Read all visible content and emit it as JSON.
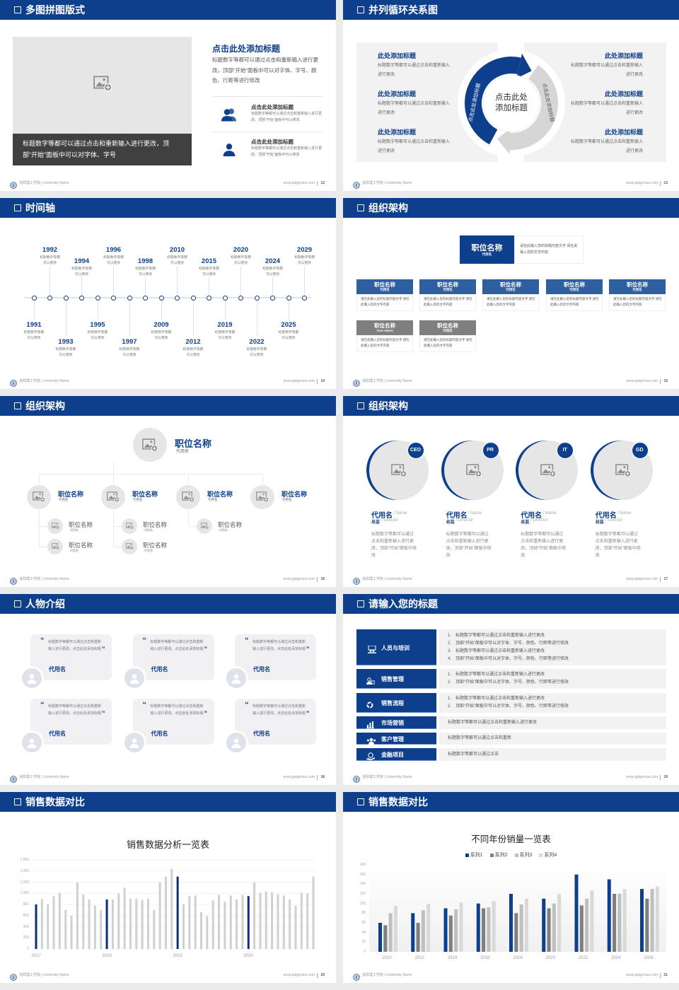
{
  "colors": {
    "primary": "#0d3f8c",
    "secondary": "#2e5f9e",
    "gray_box": "#7f7f7f",
    "panel": "#f2f2f2",
    "placeholder": "#e6e6e6",
    "caption_bg": "#404040"
  },
  "footer": {
    "school": "洛阳理工学院 | University Name",
    "site": "www.pptgenius.com"
  },
  "slides": [
    {
      "title": "多图拼图版式",
      "page": "12",
      "caption": "标题数字等都可以通过点击和重新输入进行更改，顶部“开始”面板中可以对字体、字号",
      "heading": "点击此处添加标题",
      "body": "标题数字等都可以通过点击和重新输入进行更改，顶部“开始”面板中可以对字体、字号、颜色、行距等进行修改",
      "items": [
        {
          "icon": "users-icon",
          "title": "点击此处添加标题",
          "desc": "标题数字等都可以通过点击和重新输入进行更改，顶部“开始”面板中可以修改"
        },
        {
          "icon": "user-icon",
          "title": "点击此处添加标题",
          "desc": "标题数字等都可以通过点击和重新输入进行更改，顶部“开始”面板中可以修改"
        }
      ]
    },
    {
      "title": "并列循环关系图",
      "page": "13",
      "center": "点击此处添加标题",
      "arc_left": "点击此处添加标题",
      "arc_right": "点击此处添加标题",
      "left_items": [
        {
          "title": "此处添加标题",
          "desc": "标题数字等都可以通过点击和重新输入进行更改"
        },
        {
          "title": "此处添加标题",
          "desc": "标题数字等都可以通过点击和重新输入进行更改"
        },
        {
          "title": "此处添加标题",
          "desc": "标题数字等都可以通过点击和重新输入进行更改"
        }
      ],
      "right_items": [
        {
          "title": "此处添加标题",
          "desc": "标题数字等都可以通过点击和重新输入进行更改"
        },
        {
          "title": "此处添加标题",
          "desc": "标题数字等都可以通过点击和重新输入进行更改"
        },
        {
          "title": "此处添加标题",
          "desc": "标题数字等都可以通过点击和重新输入进行更改"
        }
      ]
    },
    {
      "title": "时间轴",
      "page": "14",
      "events": [
        {
          "year": "1991",
          "desc": "标题数字等都可以更改"
        },
        {
          "year": "1992",
          "desc": "标题数字等都可以更改"
        },
        {
          "year": "1993",
          "desc": "标题数字等都可以更改"
        },
        {
          "year": "1994",
          "desc": "标题数字等都可以更改"
        },
        {
          "year": "1995",
          "desc": "标题数字等都可以更改"
        },
        {
          "year": "1996",
          "desc": "标题数字等都可以更改"
        },
        {
          "year": "1997",
          "desc": "标题数字等都可以更改"
        },
        {
          "year": "1998",
          "desc": "标题数字等都可以更改"
        },
        {
          "year": "2009",
          "desc": "标题数字等都可以更改"
        },
        {
          "year": "2010",
          "desc": "标题数字等都可以更改"
        },
        {
          "year": "2012",
          "desc": "标题数字等都可以更改"
        },
        {
          "year": "2015",
          "desc": "标题数字等都可以更改"
        },
        {
          "year": "2019",
          "desc": "标题数字等都可以更改"
        },
        {
          "year": "2020",
          "desc": "标题数字等都可以更改"
        },
        {
          "year": "2022",
          "desc": "标题数字等都可以更改"
        },
        {
          "year": "2024",
          "desc": "标题数字等都可以更改"
        },
        {
          "year": "2025",
          "desc": "标题数字等都可以更改"
        },
        {
          "year": "2029",
          "desc": "标题数字等都可以更改"
        }
      ]
    },
    {
      "title": "组织架构",
      "page": "15",
      "top": {
        "title": "职位名称",
        "sub": "代用名",
        "desc": "请在此输入您的标题内容文字 请在此输入您的文字内容"
      },
      "row1": [
        {
          "title": "职位名称",
          "sub": "代用名",
          "desc": "请在此输入您的标题内容文字 请在此输入您的文字内容"
        },
        {
          "title": "职位名称",
          "sub": "代用名",
          "desc": "请在此输入您的标题内容文字 请在此输入您的文字内容"
        },
        {
          "title": "职位名称",
          "sub": "代用名",
          "desc": "请在此输入您的标题内容文字 请在此输入您的文字内容"
        },
        {
          "title": "职位名称",
          "sub": "代用名",
          "desc": "请在此输入您的标题内容文字 请在此输入您的文字内容"
        },
        {
          "title": "职位名称",
          "sub": "代用名",
          "desc": "请在此输入您的标题内容文字 请在此输入您的文字内容"
        }
      ],
      "row2": [
        {
          "title": "职位名称",
          "sub": "Your Name",
          "desc": "请在此输入您的标题内容文字 请在此输入您的文字内容"
        },
        {
          "title": "职位名称",
          "sub": "代用名",
          "desc": "请在此输入您的标题内容文字 请在此输入您的文字内容"
        }
      ]
    },
    {
      "title": "组织架构",
      "page": "16",
      "top": {
        "title": "职位名称",
        "sub": "代用名"
      },
      "level2": [
        {
          "title": "职位名称",
          "sub": "代用名",
          "children": [
            {
              "title": "职位名称",
              "sub": "代用名"
            },
            {
              "title": "职位名称",
              "sub": "代用名"
            }
          ]
        },
        {
          "title": "职位名称",
          "sub": "代用名",
          "children": [
            {
              "title": "职位名称",
              "sub": "代用名"
            },
            {
              "title": "职位名称",
              "sub": "代用名"
            }
          ]
        },
        {
          "title": "职位名称",
          "sub": "代用名",
          "children": [
            {
              "title": "职位名称",
              "sub": "代用名"
            }
          ]
        },
        {
          "title": "职位名称",
          "sub": "代用名",
          "children": []
        }
      ]
    },
    {
      "title": "组织架构",
      "page": "17",
      "members": [
        {
          "badge": "CEO",
          "name": "代用名",
          "name_en": "/ Name",
          "role": "总监",
          "role_en": "/ Director",
          "desc": "标题数字等都可以通过点击和重新输入进行更改，顶部“开始”面板中修改"
        },
        {
          "badge": "PR",
          "name": "代用名",
          "name_en": "/ Name",
          "role": "总监",
          "role_en": "/ Director",
          "desc": "标题数字等都可以通过点击和重新输入进行更改，顶部“开始”面板中修改"
        },
        {
          "badge": "IT",
          "name": "代用名",
          "name_en": "/ Name",
          "role": "总监",
          "role_en": "/ Director",
          "desc": "标题数字等都可以通过点击和重新输入进行更改，顶部“开始”面板中修改"
        },
        {
          "badge": "GD",
          "name": "代用名",
          "name_en": "/ Name",
          "role": "总监",
          "role_en": "/ Director",
          "desc": "标题数字等都可以通过点击和重新输入进行更改，顶部“开始”面板中修改"
        }
      ]
    },
    {
      "title": "人物介绍",
      "page": "18",
      "quotes": [
        {
          "text": "标题数字等都可以通过点击和重新输入进行更改，点击此处添加标题",
          "name": "代用名"
        },
        {
          "text": "标题数字等都可以通过点击和重新输入进行更改，点击此处添加标题",
          "name": "代用名"
        },
        {
          "text": "标题数字等都可以通过点击和重新输入进行更改，点击此处添加标题",
          "name": "代用名"
        },
        {
          "text": "标题数字等都可以通过点击和重新输入进行更改，点击此处添加标题",
          "name": "代用名"
        },
        {
          "text": "标题数字等都可以通过点击和重新输入进行更改，点击此处添加标题",
          "name": "代用名"
        },
        {
          "text": "标题数字等都可以通过点击和重新输入进行更改，点击此处添加标题",
          "name": "代用名"
        }
      ]
    },
    {
      "title": "请输入您的标题",
      "page": "19",
      "rows": [
        {
          "icon": "training-icon",
          "label": "人员与培训",
          "lines": [
            "1.　标题数字等都可以通过点击和重新输入进行更改",
            "2.　顶部“开始”面板中可以对字体、字号、颜色、行距等进行修改",
            "3.　标题数字等都可以通过点击和重新输入进行更改",
            "4.　顶部“开始”面板中可以对字体、字号、颜色、行距等进行修改"
          ]
        },
        {
          "icon": "sales-management-icon",
          "label": "销售管理",
          "lines": [
            "1.　标题数字等都可以通过点击和重新输入进行更改",
            "2.　顶部“开始”面板中可以对字体、字号、颜色、行距等进行修改"
          ]
        },
        {
          "icon": "cycle-icon",
          "label": "销售流程",
          "lines": [
            "1.　标题数字等都可以通过点击和重新输入进行更改",
            "2.　顶部“开始”面板中可以对字体、字号、颜色、行距等进行修改"
          ]
        },
        {
          "icon": "bar-chart-icon",
          "label": "市场营销",
          "lines": [
            "标题数字等都可以通过点击和重新输入进行更改"
          ]
        },
        {
          "icon": "customers-icon",
          "label": "客户管理",
          "lines": [
            "标题数字等都可以通过点击和重新"
          ]
        },
        {
          "icon": "finance-icon",
          "label": "金融项目",
          "lines": [
            "标题数字等都可以通过点击"
          ]
        }
      ]
    },
    {
      "title": "销售数据对比",
      "page": "20"
    },
    {
      "title": "销售数据对比",
      "page": "21"
    }
  ],
  "chart_data": [
    {
      "type": "bar",
      "title": "销售数据分析一览表",
      "ylim": [
        0,
        1600
      ],
      "yticks": [
        "0",
        "200",
        "400",
        "600",
        "800",
        "1,000",
        "1,200",
        "1,400",
        "1,600"
      ],
      "xlabels": [
        "2017",
        "2018",
        "2019",
        "2020"
      ],
      "highlight": "first bar of each year",
      "grid": true,
      "values": [
        800,
        900,
        800,
        950,
        1010,
        700,
        600,
        1200,
        980,
        890,
        780,
        700,
        890,
        890,
        1000,
        1100,
        900,
        900,
        880,
        900,
        700,
        1200,
        1300,
        1440,
        1300,
        800,
        950,
        960,
        660,
        590,
        870,
        970,
        850,
        960,
        890,
        970,
        950,
        1200,
        1010,
        1030,
        1020,
        980,
        960,
        890,
        780,
        1010,
        1000,
        1300
      ]
    },
    {
      "type": "bar",
      "title": "不同年份销量一览表",
      "ylim": [
        0,
        180
      ],
      "yticks": [
        "0",
        "20",
        "40",
        "60",
        "80",
        "100",
        "120",
        "140",
        "160",
        "180"
      ],
      "categories": [
        "2010",
        "2012",
        "2014",
        "2016",
        "2018",
        "2020",
        "2022",
        "2024",
        "2026"
      ],
      "legend": "top",
      "grid": false,
      "series": [
        {
          "name": "系列1",
          "color": "#0d3f8c",
          "values": [
            60,
            80,
            90,
            100,
            120,
            110,
            160,
            150,
            130
          ]
        },
        {
          "name": "系列2",
          "color": "#7f7f7f",
          "values": [
            55,
            60,
            75,
            90,
            80,
            90,
            96,
            120,
            110
          ]
        },
        {
          "name": "系列3",
          "color": "#bfbfbf",
          "values": [
            80,
            86,
            88,
            92,
            98,
            100,
            110,
            120,
            130
          ]
        },
        {
          "name": "系列4",
          "color": "#d9d9d9",
          "values": [
            95,
            99,
            102,
            105,
            110,
            120,
            127,
            130,
            135
          ]
        }
      ]
    }
  ]
}
